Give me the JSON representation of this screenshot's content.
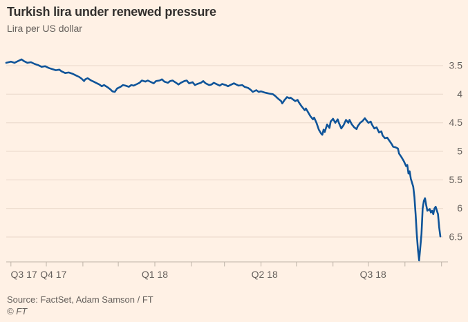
{
  "header": {
    "title": "Turkish lira under renewed pressure",
    "subtitle": "Lira per US dollar"
  },
  "footer": {
    "source": "Source: FactSet, Adam Samson / FT",
    "copyright": "© FT"
  },
  "colors": {
    "background": "#fff1e5",
    "title_text": "#33302e",
    "muted_text": "#66605c",
    "gridline": "#e8d8c9",
    "axis": "#bdb3a7",
    "line": "#0f5499"
  },
  "chart_data": {
    "type": "line",
    "title": "Turkish lira under renewed pressure",
    "ylabel": "Lira per US dollar",
    "legend": "none",
    "grid": "horizontal",
    "y_axis": {
      "side": "right",
      "direction": "values-increase-downward",
      "ticks": [
        3.5,
        4,
        4.5,
        5,
        5.5,
        6,
        6.5
      ],
      "display_min": 3.32,
      "display_max": 6.93
    },
    "x_axis": {
      "start_date": "2017-08-28",
      "end_date": "2018-08-31",
      "span_days": 368,
      "month_tick_days": [
        4,
        34,
        65,
        95,
        126,
        157,
        185,
        216,
        246,
        277,
        307,
        338,
        369
      ],
      "quarter_labels": [
        {
          "label": "Q3 17",
          "day": 15
        },
        {
          "label": "Q4 17",
          "day": 40
        },
        {
          "label": "Q1 18",
          "day": 126
        },
        {
          "label": "Q2 18",
          "day": 219
        },
        {
          "label": "Q3 18",
          "day": 311
        }
      ]
    },
    "series": [
      {
        "name": "Lira per US dollar",
        "x_days": [
          0,
          4,
          7,
          11,
          13,
          15,
          18,
          21,
          24,
          27,
          30,
          33,
          36,
          39,
          42,
          45,
          47,
          50,
          53,
          56,
          59,
          62,
          64,
          66,
          67,
          69,
          72,
          74,
          76,
          79,
          81,
          83,
          86,
          88,
          90,
          92,
          94,
          97,
          99,
          101,
          104,
          106,
          108,
          111,
          113,
          115,
          118,
          120,
          123,
          125,
          127,
          130,
          132,
          134,
          137,
          139,
          141,
          144,
          146,
          148,
          151,
          153,
          155,
          158,
          160,
          162,
          165,
          167,
          169,
          172,
          174,
          176,
          179,
          181,
          183,
          186,
          188,
          190,
          193,
          195,
          197,
          200,
          202,
          205,
          207,
          209,
          212,
          214,
          216,
          219,
          221,
          223,
          226,
          228,
          230,
          233,
          234,
          236,
          238,
          240,
          241,
          243,
          245,
          247,
          248,
          250,
          253,
          254,
          256,
          258,
          260,
          261,
          263,
          265,
          267,
          268,
          269,
          270,
          272,
          274,
          275,
          277,
          279,
          281,
          282,
          284,
          286,
          288,
          290,
          291,
          293,
          295,
          297,
          298,
          300,
          302,
          304,
          305,
          307,
          309,
          310,
          312,
          314,
          316,
          318,
          319,
          321,
          323,
          325,
          327,
          328,
          330,
          332,
          333,
          335,
          337,
          339,
          340,
          341,
          342,
          343,
          345,
          346,
          347,
          348,
          349,
          350,
          352,
          353,
          354,
          355,
          356,
          357,
          359,
          360,
          361,
          362,
          363,
          364,
          366,
          367,
          368
        ],
        "values": [
          3.45,
          3.43,
          3.45,
          3.41,
          3.39,
          3.42,
          3.45,
          3.44,
          3.47,
          3.49,
          3.52,
          3.51,
          3.54,
          3.56,
          3.58,
          3.57,
          3.6,
          3.63,
          3.62,
          3.64,
          3.67,
          3.7,
          3.73,
          3.77,
          3.74,
          3.72,
          3.76,
          3.78,
          3.8,
          3.83,
          3.86,
          3.84,
          3.88,
          3.91,
          3.95,
          3.96,
          3.9,
          3.87,
          3.84,
          3.85,
          3.87,
          3.84,
          3.85,
          3.82,
          3.8,
          3.76,
          3.78,
          3.76,
          3.79,
          3.81,
          3.77,
          3.76,
          3.74,
          3.78,
          3.8,
          3.77,
          3.76,
          3.8,
          3.83,
          3.8,
          3.77,
          3.76,
          3.81,
          3.79,
          3.84,
          3.82,
          3.8,
          3.77,
          3.81,
          3.84,
          3.83,
          3.8,
          3.83,
          3.85,
          3.82,
          3.84,
          3.86,
          3.84,
          3.81,
          3.83,
          3.85,
          3.84,
          3.87,
          3.89,
          3.92,
          3.96,
          3.93,
          3.96,
          3.95,
          3.97,
          3.98,
          3.99,
          4.0,
          4.03,
          4.07,
          4.12,
          4.16,
          4.1,
          4.05,
          4.07,
          4.06,
          4.09,
          4.12,
          4.1,
          4.14,
          4.2,
          4.28,
          4.25,
          4.32,
          4.39,
          4.44,
          4.41,
          4.5,
          4.62,
          4.69,
          4.71,
          4.62,
          4.66,
          4.53,
          4.59,
          4.48,
          4.43,
          4.5,
          4.44,
          4.5,
          4.6,
          4.54,
          4.45,
          4.5,
          4.45,
          4.53,
          4.58,
          4.61,
          4.56,
          4.5,
          4.47,
          4.42,
          4.45,
          4.5,
          4.48,
          4.53,
          4.6,
          4.58,
          4.67,
          4.65,
          4.72,
          4.77,
          4.76,
          4.82,
          4.88,
          4.92,
          4.93,
          4.95,
          5.04,
          5.1,
          5.17,
          5.26,
          5.24,
          5.39,
          5.35,
          5.48,
          5.62,
          5.8,
          6.1,
          6.45,
          6.72,
          6.91,
          6.45,
          6.0,
          5.87,
          5.82,
          5.94,
          6.04,
          6.01,
          6.07,
          6.04,
          6.1,
          6.0,
          5.97,
          6.1,
          6.33,
          6.49
        ]
      }
    ]
  }
}
